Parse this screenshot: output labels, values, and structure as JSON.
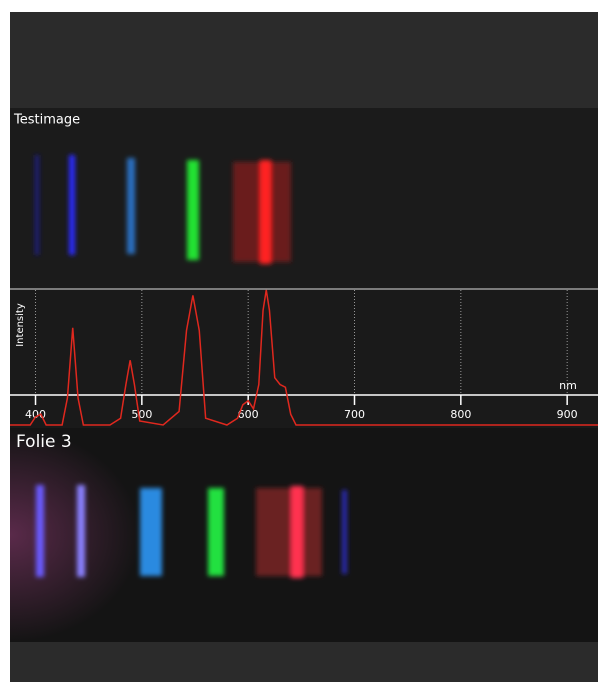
{
  "panels": [
    {
      "label": "Testimage"
    },
    {
      "label": "Folie 3"
    }
  ],
  "chart_data": {
    "type": "line",
    "xlabel": "nm",
    "ylabel": "Intensity",
    "x": [
      376,
      395,
      400,
      405,
      410,
      425,
      430,
      435,
      440,
      445,
      470,
      480,
      485,
      489,
      493,
      498,
      520,
      535,
      542,
      548,
      554,
      560,
      580,
      590,
      595,
      600,
      605,
      610,
      614,
      617,
      620,
      625,
      630,
      635,
      640,
      645,
      660,
      929
    ],
    "series": [
      {
        "name": "Intensity",
        "color": "#e0281e",
        "values": [
          0,
          0,
          6,
          8,
          0,
          0,
          20,
          72,
          20,
          0,
          0,
          5,
          30,
          48,
          30,
          3,
          0,
          10,
          70,
          96,
          70,
          5,
          0,
          5,
          15,
          18,
          12,
          30,
          85,
          100,
          85,
          35,
          30,
          28,
          8,
          0,
          0,
          0
        ]
      }
    ],
    "xlim": [
      376,
      929
    ],
    "ylim": [
      0,
      100
    ],
    "xticks": [
      400,
      500,
      600,
      700,
      800,
      900
    ],
    "grid": true
  }
}
